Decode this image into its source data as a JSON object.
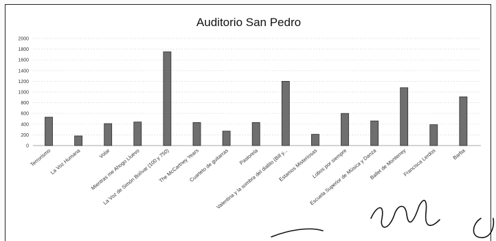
{
  "chart_data": {
    "type": "bar",
    "title": "Auditorio San Pedro",
    "xlabel": "",
    "ylabel": "",
    "ylim": [
      0,
      2000
    ],
    "yticks": [
      0,
      200,
      400,
      600,
      800,
      1000,
      1200,
      1400,
      1600,
      1800,
      2000
    ],
    "grid": true,
    "legend": "none",
    "categories": [
      "Terrorismo",
      "La Voz Humana",
      "Volar",
      "Mientras me Ahogo Lluevo",
      "La Voz de Simón Bolívar (100 y 750)",
      "The McCartney Years",
      "Cuarteto de guitarras",
      "Pastorela",
      "Valentina y la sombra del diablo (Bill y...",
      "Estamos Misteriosas",
      "Lobos por siempre",
      "Escuela Superior de Música y Danza",
      "Ballet de Monterrey",
      "Francisca Lerdos",
      "Barba"
    ],
    "values": [
      530,
      180,
      410,
      440,
      1750,
      430,
      270,
      430,
      1200,
      210,
      600,
      460,
      1080,
      390,
      910
    ]
  },
  "colors": {
    "bar_fill": "#6f6f6f",
    "bar_edge": "#2a2a2a",
    "grid": "#dadada",
    "frame": "#222222"
  }
}
